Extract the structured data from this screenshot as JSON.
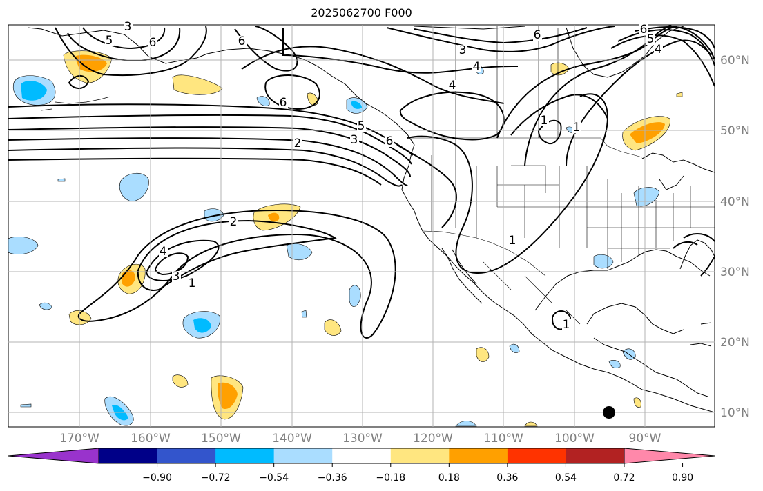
{
  "title": "2025062700 F000",
  "map": {
    "lat_labels": [
      "60°N",
      "50°N",
      "40°N",
      "30°N",
      "20°N",
      "10°N"
    ],
    "lon_labels": [
      "170°W",
      "160°W",
      "150°W",
      "140°W",
      "130°W",
      "120°W",
      "110°W",
      "100°W",
      "90°W"
    ],
    "grid": true,
    "contour_color": "#000000",
    "contour_labels": [
      {
        "text": "3"
      },
      {
        "text": "6"
      },
      {
        "text": "5"
      },
      {
        "text": "6"
      },
      {
        "text": "6"
      },
      {
        "text": "2"
      },
      {
        "text": "3"
      },
      {
        "text": "5"
      },
      {
        "text": "6"
      },
      {
        "text": "4"
      },
      {
        "text": "3"
      },
      {
        "text": "6"
      },
      {
        "text": "4"
      },
      {
        "text": "6"
      },
      {
        "text": "5"
      },
      {
        "text": "4"
      },
      {
        "text": "1"
      },
      {
        "text": "1"
      },
      {
        "text": "2"
      },
      {
        "text": "4"
      },
      {
        "text": "3"
      },
      {
        "text": "1"
      },
      {
        "text": "1"
      },
      {
        "text": "1"
      }
    ]
  },
  "colorbar": {
    "colors": [
      "#9933cc",
      "#000088",
      "#3355cc",
      "#00bbff",
      "#aaddff",
      "#ffffff",
      "#ffe680",
      "#ffa000",
      "#ff3300",
      "#b22222",
      "#ff88aa"
    ],
    "tick_labels": [
      "−0.90",
      "−0.72",
      "−0.54",
      "−0.36",
      "−0.18",
      "0.18",
      "0.36",
      "0.54",
      "0.72",
      "0.90"
    ]
  }
}
